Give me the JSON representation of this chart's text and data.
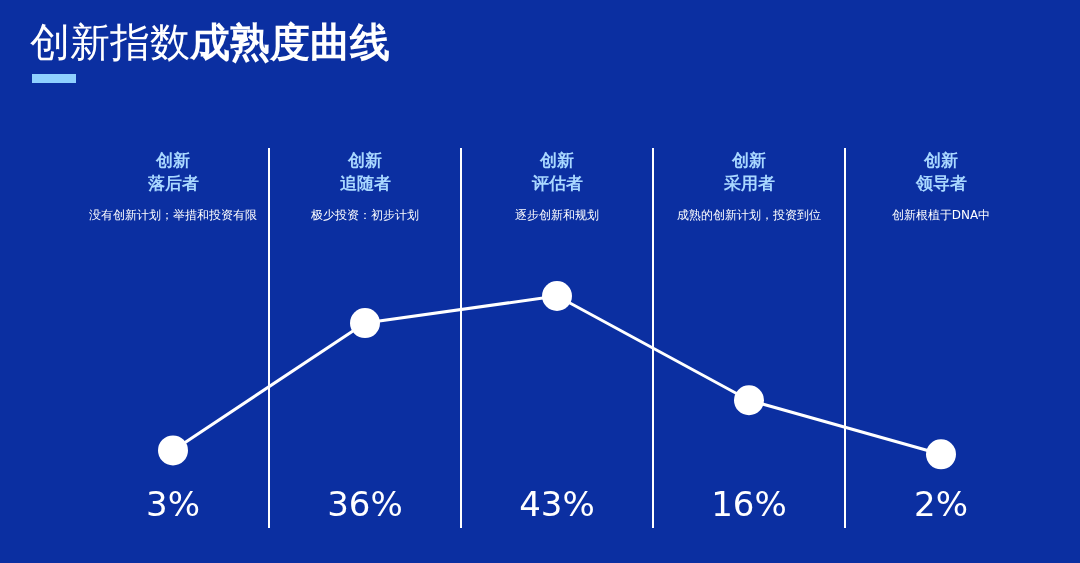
{
  "chart_data": {
    "type": "line",
    "title": "创新指数**成熟度曲线**",
    "categories": [
      "创新落后者",
      "创新追随者",
      "创新评估者",
      "创新采用者",
      "创新领导者"
    ],
    "values": [
      3,
      36,
      43,
      16,
      2
    ],
    "value_labels": [
      "3%",
      "36%",
      "43%",
      "16%",
      "2%"
    ],
    "color": "#ffffff",
    "marker": "circle",
    "annotations": [
      "没有创新计划；举措和投资有限",
      "极少投资：初步计划",
      "逐步创新和规划",
      "成熟的创新计划，投资到位",
      "创新根植于DNA中"
    ]
  }
}
